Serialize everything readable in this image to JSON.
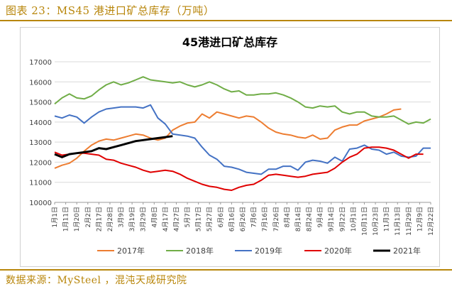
{
  "figure_label": "图表 23：MS45 港进口矿总库存（万吨）",
  "source_note": "数据来源：MySteel ，混沌天成研究院",
  "colors": {
    "2017": "#ed7d31",
    "2018": "#70ad47",
    "2019": "#4472c4",
    "2020": "#e00000",
    "2021": "#000000",
    "accent": "#b8860b"
  },
  "chart_data": {
    "type": "line",
    "title": "45港进口矿总库存",
    "xlabel": "",
    "ylabel": "",
    "ylim": [
      10000,
      17000
    ],
    "yticks": [
      10000,
      11000,
      12000,
      13000,
      14000,
      15000,
      16000,
      17000
    ],
    "xtick_labels": [
      "1月1日",
      "1月11日",
      "1月20日",
      "2月2日",
      "2月17日",
      "2月28日",
      "3月9日",
      "3月19日",
      "3月29日",
      "4月8日",
      "4月17日",
      "4月27日",
      "5月7日",
      "5月17日",
      "5月27日",
      "6月6日",
      "6月16日",
      "6月26日",
      "7月6日",
      "7月16日",
      "7月26日",
      "8月4日",
      "8月14日",
      "8月24日",
      "9月4日",
      "9月14日",
      "9月22日",
      "10月1日",
      "10月11日",
      "10月23日",
      "11月3日",
      "11月13日",
      "11月29日",
      "12月9日",
      "12月22日"
    ],
    "grid": "horizontal",
    "legend": "bottom",
    "series": [
      {
        "name": "2017年",
        "values": [
          11700,
          11850,
          11950,
          12200,
          12550,
          12850,
          13050,
          13150,
          13100,
          13200,
          13300,
          13400,
          13350,
          13200,
          13100,
          13200,
          13600,
          13800,
          13950,
          14000,
          14400,
          14200,
          14500,
          14400,
          14300,
          14200,
          14300,
          14250,
          14000,
          13700,
          13500,
          13400,
          13350,
          13250,
          13200,
          13350,
          13150,
          13200,
          13600,
          13750,
          13850,
          13850,
          14050,
          14150,
          14250,
          14400,
          14600,
          14650
        ]
      },
      {
        "name": "2018年",
        "values": [
          14900,
          15200,
          15400,
          15200,
          15150,
          15300,
          15600,
          15850,
          16000,
          15850,
          15950,
          16100,
          16250,
          16100,
          16050,
          16000,
          15950,
          16000,
          15850,
          15750,
          15850,
          16000,
          15850,
          15650,
          15500,
          15550,
          15350,
          15350,
          15400,
          15400,
          15450,
          15350,
          15200,
          15000,
          14750,
          14700,
          14800,
          14750,
          14800,
          14500,
          14400,
          14500,
          14500,
          14300,
          14250,
          14250,
          14300,
          14100,
          13900,
          14000,
          13950,
          14150
        ]
      },
      {
        "name": "2019年",
        "values": [
          14300,
          14200,
          14350,
          14250,
          13950,
          14250,
          14500,
          14650,
          14700,
          14750,
          14750,
          14750,
          14700,
          14850,
          14200,
          13900,
          13400,
          13350,
          13300,
          13200,
          12750,
          12350,
          12150,
          11800,
          11750,
          11650,
          11500,
          11450,
          11400,
          11650,
          11650,
          11800,
          11800,
          11600,
          12000,
          12100,
          12050,
          11950,
          12250,
          12050,
          12650,
          12700,
          12850,
          12650,
          12600,
          12400,
          12500,
          12300,
          12250,
          12300,
          12700,
          12700
        ]
      },
      {
        "name": "2020年",
        "values": [
          12500,
          12350,
          12400,
          12450,
          12450,
          12400,
          12350,
          12150,
          12100,
          11950,
          11850,
          11750,
          11600,
          11500,
          11550,
          11600,
          11550,
          11400,
          11200,
          11050,
          10900,
          10800,
          10750,
          10650,
          10600,
          10750,
          10850,
          10900,
          11100,
          11350,
          11400,
          11350,
          11300,
          11250,
          11300,
          11400,
          11450,
          11500,
          11700,
          12000,
          12250,
          12400,
          12700,
          12750,
          12750,
          12700,
          12600,
          12400,
          12200,
          12400,
          12400
        ]
      },
      {
        "name": "2021年",
        "values": [
          12400,
          12250,
          12400,
          12450,
          12500,
          12550,
          12700,
          12650,
          12750,
          12850,
          12950,
          13050,
          13100,
          13150,
          13200,
          13250,
          13300
        ]
      }
    ]
  }
}
